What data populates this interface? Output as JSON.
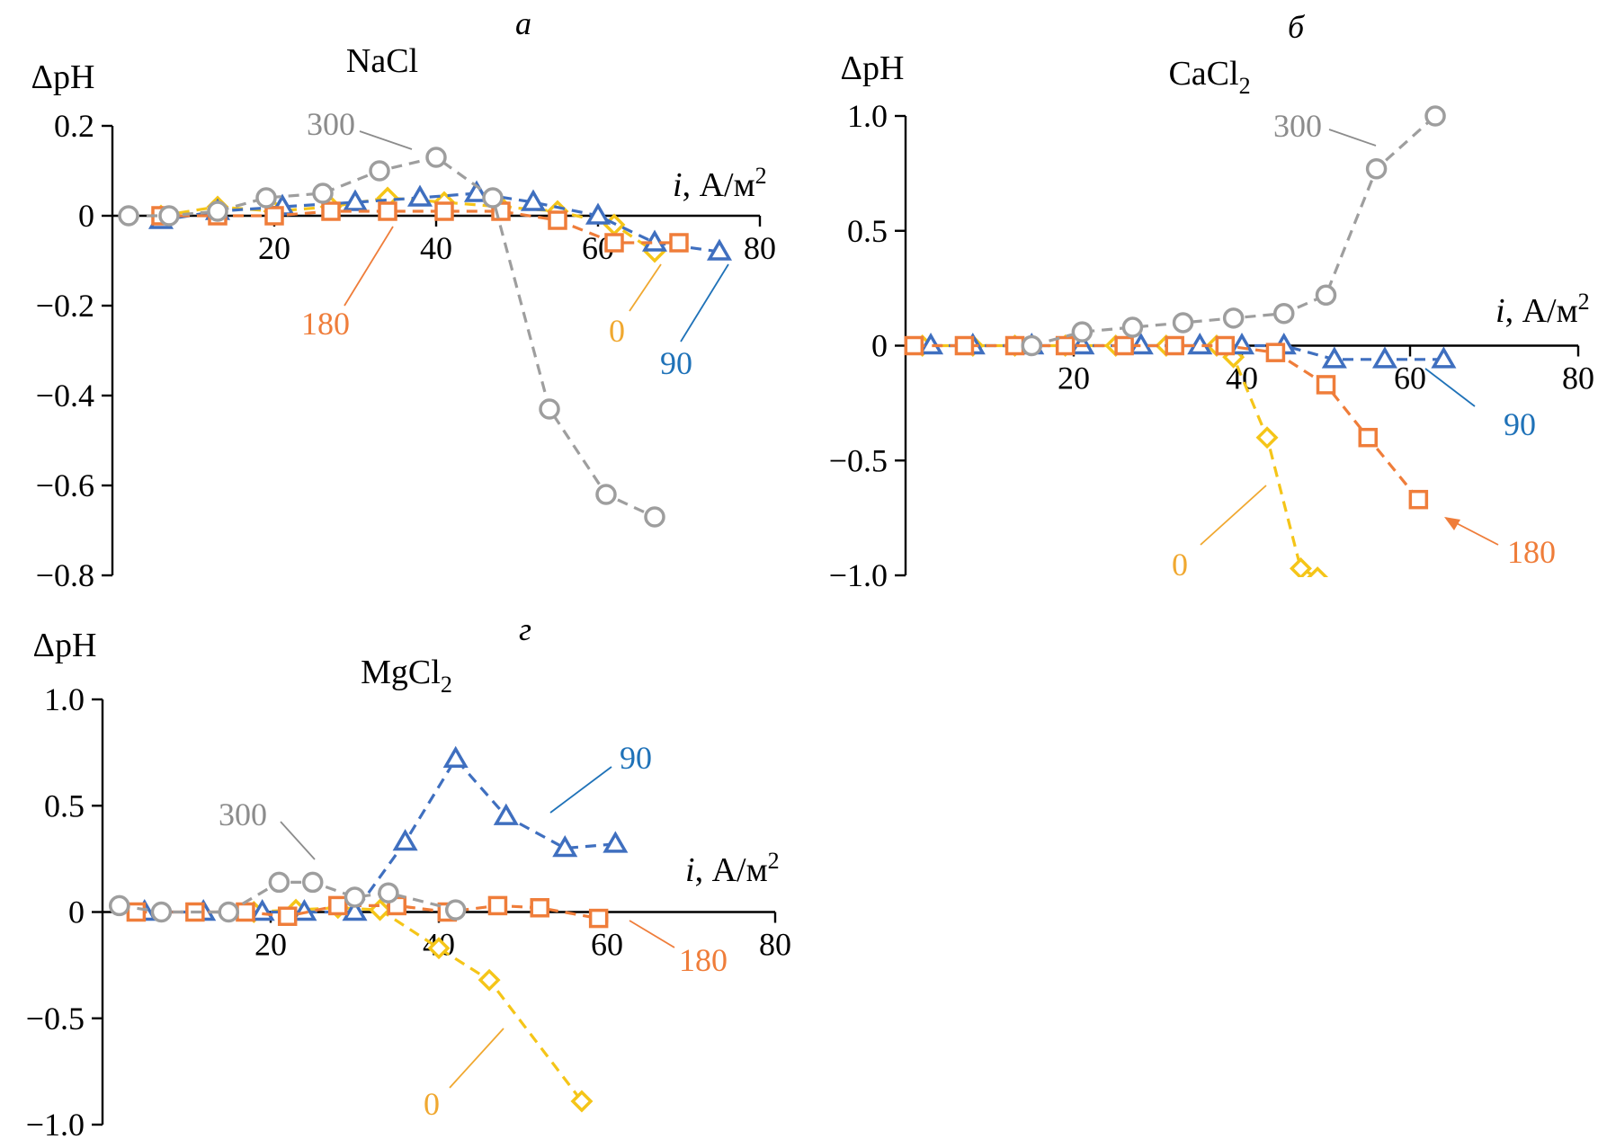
{
  "colors": {
    "0": "#f5c518",
    "90": "#3f6fbf",
    "180": "#ef7d3a",
    "300": "#9e9e9e",
    "label_0": "#f0a830",
    "label_90": "#1f72b8",
    "label_180": "#ef7d3a",
    "label_300": "#8c8c8c"
  },
  "chart_data": [
    {
      "type": "scatter",
      "panel_letter": "а",
      "title": "NaCl",
      "ylabel": "ΔpH",
      "xlabel_var": "i",
      "xlabel_unit": ", А/м",
      "xlabel_sup": "2",
      "xlim": [
        0,
        80
      ],
      "ylim": [
        -0.8,
        0.2
      ],
      "xticks": [
        20,
        40,
        60,
        80
      ],
      "yticks": [
        0.2,
        0,
        -0.2,
        -0.4,
        -0.6,
        -0.8
      ],
      "ytick_labels": [
        "0.2",
        "0",
        "−0.2",
        "−0.4",
        "−0.6",
        "−0.8"
      ],
      "series": [
        {
          "name": "0",
          "marker": "diamond",
          "x": [
            6,
            13,
            20,
            27,
            34,
            41,
            48,
            55,
            62,
            67
          ],
          "y": [
            0,
            0.02,
            0.01,
            0.02,
            0.04,
            0.03,
            0.02,
            0.01,
            -0.02,
            -0.08
          ]
        },
        {
          "name": "90",
          "marker": "triangle",
          "x": [
            6,
            13,
            21,
            30,
            38,
            45,
            52,
            60,
            67,
            75
          ],
          "y": [
            -0.01,
            0.01,
            0.02,
            0.03,
            0.04,
            0.05,
            0.03,
            0,
            -0.06,
            -0.08
          ]
        },
        {
          "name": "180",
          "marker": "square",
          "x": [
            6,
            13,
            20,
            27,
            34,
            41,
            48,
            55,
            62,
            70
          ],
          "y": [
            0,
            0,
            0,
            0.01,
            0.01,
            0.01,
            0.01,
            -0.01,
            -0.06,
            -0.06
          ]
        },
        {
          "name": "300",
          "marker": "circle",
          "x": [
            2,
            7,
            13,
            19,
            26,
            33,
            40,
            47,
            54,
            61,
            67
          ],
          "y": [
            0,
            0,
            0.01,
            0.04,
            0.05,
            0.1,
            0.13,
            0.04,
            -0.43,
            -0.62,
            -0.67
          ]
        }
      ],
      "annotations": [
        {
          "text": "300",
          "series": "300"
        },
        {
          "text": "180",
          "series": "180"
        },
        {
          "text": "0",
          "series": "0"
        },
        {
          "text": "90",
          "series": "90"
        }
      ]
    },
    {
      "type": "scatter",
      "panel_letter": "б",
      "title": "CaCl",
      "title_sub": "2",
      "ylabel": "ΔpH",
      "xlabel_var": "i",
      "xlabel_unit": ", А/м",
      "xlabel_sup": "2",
      "xlim": [
        0,
        80
      ],
      "ylim": [
        -1.0,
        1.0
      ],
      "xticks": [
        20,
        40,
        60,
        80
      ],
      "yticks": [
        1.0,
        0.5,
        0,
        -0.5,
        -1.0
      ],
      "ytick_labels": [
        "1.0",
        "0.5",
        "0",
        "−0.5",
        "−1.0"
      ],
      "series": [
        {
          "name": "0",
          "marker": "diamond",
          "x": [
            2,
            8,
            13,
            19,
            25,
            31,
            37,
            39,
            43,
            47,
            49
          ],
          "y": [
            0,
            0,
            0,
            0,
            0,
            0,
            0,
            -0.05,
            -0.4,
            -0.97,
            -1.01
          ]
        },
        {
          "name": "90",
          "marker": "triangle",
          "x": [
            3,
            8,
            15,
            21,
            28,
            35,
            40,
            45,
            51,
            57,
            64
          ],
          "y": [
            0,
            0,
            0,
            0,
            0,
            0,
            0,
            0,
            -0.06,
            -0.06,
            -0.06
          ]
        },
        {
          "name": "180",
          "marker": "square",
          "x": [
            1,
            7,
            13,
            19,
            26,
            32,
            38,
            44,
            50,
            55,
            61
          ],
          "y": [
            0,
            0,
            0,
            0,
            0,
            0,
            0,
            -0.03,
            -0.17,
            -0.4,
            -0.67
          ]
        },
        {
          "name": "300",
          "marker": "circle",
          "x": [
            15,
            21,
            27,
            33,
            39,
            45,
            50,
            56,
            63
          ],
          "y": [
            0,
            0.06,
            0.08,
            0.1,
            0.12,
            0.14,
            0.22,
            0.77,
            1.0
          ]
        }
      ],
      "annotations": [
        {
          "text": "300",
          "series": "300"
        },
        {
          "text": "90",
          "series": "90"
        },
        {
          "text": "0",
          "series": "0"
        },
        {
          "text": "180",
          "series": "180"
        }
      ]
    },
    {
      "type": "scatter",
      "panel_letter": "г",
      "title": "MgCl",
      "title_sub": "2",
      "ylabel": "ΔpH",
      "xlabel_var": "i",
      "xlabel_unit": ", А/м",
      "xlabel_sup": "2",
      "xlim": [
        0,
        80
      ],
      "ylim": [
        -1.0,
        1.0
      ],
      "xticks": [
        20,
        40,
        60,
        80
      ],
      "yticks": [
        1.0,
        0.5,
        0,
        -0.5,
        -1.0
      ],
      "ytick_labels": [
        "1.0",
        "0.5",
        "0",
        "−0.5",
        "−1.0"
      ],
      "series": [
        {
          "name": "0",
          "marker": "diamond",
          "x": [
            18,
            23,
            28,
            33,
            40,
            46,
            57
          ],
          "y": [
            0,
            0.01,
            0.02,
            0.01,
            -0.17,
            -0.32,
            -0.89
          ]
        },
        {
          "name": "90",
          "marker": "triangle",
          "x": [
            5,
            12,
            19,
            24,
            30,
            36,
            42,
            48,
            55,
            61
          ],
          "y": [
            0,
            0,
            0,
            0,
            0,
            0.33,
            0.72,
            0.45,
            0.3,
            0.32
          ]
        },
        {
          "name": "180",
          "marker": "square",
          "x": [
            4,
            11,
            17,
            22,
            28,
            35,
            41,
            47,
            52,
            59
          ],
          "y": [
            0,
            0,
            0,
            -0.02,
            0.03,
            0.03,
            0,
            0.03,
            0.02,
            -0.03
          ]
        },
        {
          "name": "300",
          "marker": "circle",
          "x": [
            2,
            7,
            15,
            21,
            25,
            30,
            34,
            42
          ],
          "y": [
            0.03,
            0,
            0,
            0.14,
            0.14,
            0.07,
            0.09,
            0.01
          ]
        }
      ],
      "annotations": [
        {
          "text": "300",
          "series": "300"
        },
        {
          "text": "90",
          "series": "90"
        },
        {
          "text": "180",
          "series": "180"
        },
        {
          "text": "0",
          "series": "0"
        }
      ]
    }
  ]
}
